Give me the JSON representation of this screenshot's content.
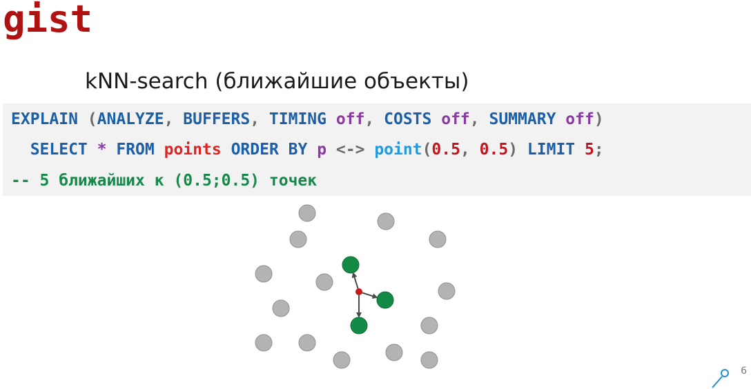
{
  "slide": {
    "title": "gist",
    "subtitle": "kNN-search (ближайшие объекты)",
    "page_number": "6"
  },
  "code": {
    "line1": [
      {
        "t": "EXPLAIN",
        "c": "kw"
      },
      {
        "t": " (",
        "c": "ph"
      },
      {
        "t": "ANALYZE",
        "c": "kw"
      },
      {
        "t": ", ",
        "c": "ph"
      },
      {
        "t": "BUFFERS",
        "c": "kw"
      },
      {
        "t": ", ",
        "c": "ph"
      },
      {
        "t": "TIMING",
        "c": "kw"
      },
      {
        "t": " ",
        "c": "ph"
      },
      {
        "t": "off",
        "c": "pu"
      },
      {
        "t": ", ",
        "c": "ph"
      },
      {
        "t": "COSTS",
        "c": "kw"
      },
      {
        "t": " ",
        "c": "ph"
      },
      {
        "t": "off",
        "c": "pu"
      },
      {
        "t": ", ",
        "c": "ph"
      },
      {
        "t": "SUMMARY",
        "c": "kw"
      },
      {
        "t": " ",
        "c": "ph"
      },
      {
        "t": "off",
        "c": "pu"
      },
      {
        "t": ")",
        "c": "ph"
      }
    ],
    "line2": [
      {
        "t": "  SELECT",
        "c": "kw"
      },
      {
        "t": " ",
        "c": "ph"
      },
      {
        "t": "*",
        "c": "pu"
      },
      {
        "t": " ",
        "c": "ph"
      },
      {
        "t": "FROM",
        "c": "kw"
      },
      {
        "t": " ",
        "c": "ph"
      },
      {
        "t": "points",
        "c": "tb"
      },
      {
        "t": " ",
        "c": "ph"
      },
      {
        "t": "ORDER BY",
        "c": "kw"
      },
      {
        "t": " ",
        "c": "ph"
      },
      {
        "t": "p",
        "c": "pu"
      },
      {
        "t": " <-> ",
        "c": "op"
      },
      {
        "t": "point",
        "c": "fn"
      },
      {
        "t": "(",
        "c": "ph"
      },
      {
        "t": "0.5",
        "c": "nm"
      },
      {
        "t": ", ",
        "c": "ph"
      },
      {
        "t": "0.5",
        "c": "nm"
      },
      {
        "t": ") ",
        "c": "ph"
      },
      {
        "t": "LIMIT",
        "c": "kw"
      },
      {
        "t": " ",
        "c": "ph"
      },
      {
        "t": "5",
        "c": "nm"
      },
      {
        "t": ";",
        "c": "ph"
      }
    ],
    "line3": [
      {
        "t": "-- 5 ближайших к (0.5;0.5) точек",
        "c": "cm"
      }
    ]
  },
  "diagram": {
    "colors": {
      "gray_point": "#b3b3b3",
      "gray_stroke": "#8f8f8f",
      "nearest_point": "#138a45",
      "nearest_stroke": "#0d6b34",
      "query_point": "#c21818",
      "arrow": "#4a4a4a"
    }
  },
  "colors": {
    "title": "#b01212",
    "code_background": "#f2f2f2",
    "keyword": "#1b5fa8",
    "purple": "#8b3aa3",
    "number": "#c4151c",
    "table": "#e02424",
    "function": "#1e9be0",
    "comment": "#17884a"
  },
  "icons": {
    "corner_logo": "pin-line-icon"
  }
}
